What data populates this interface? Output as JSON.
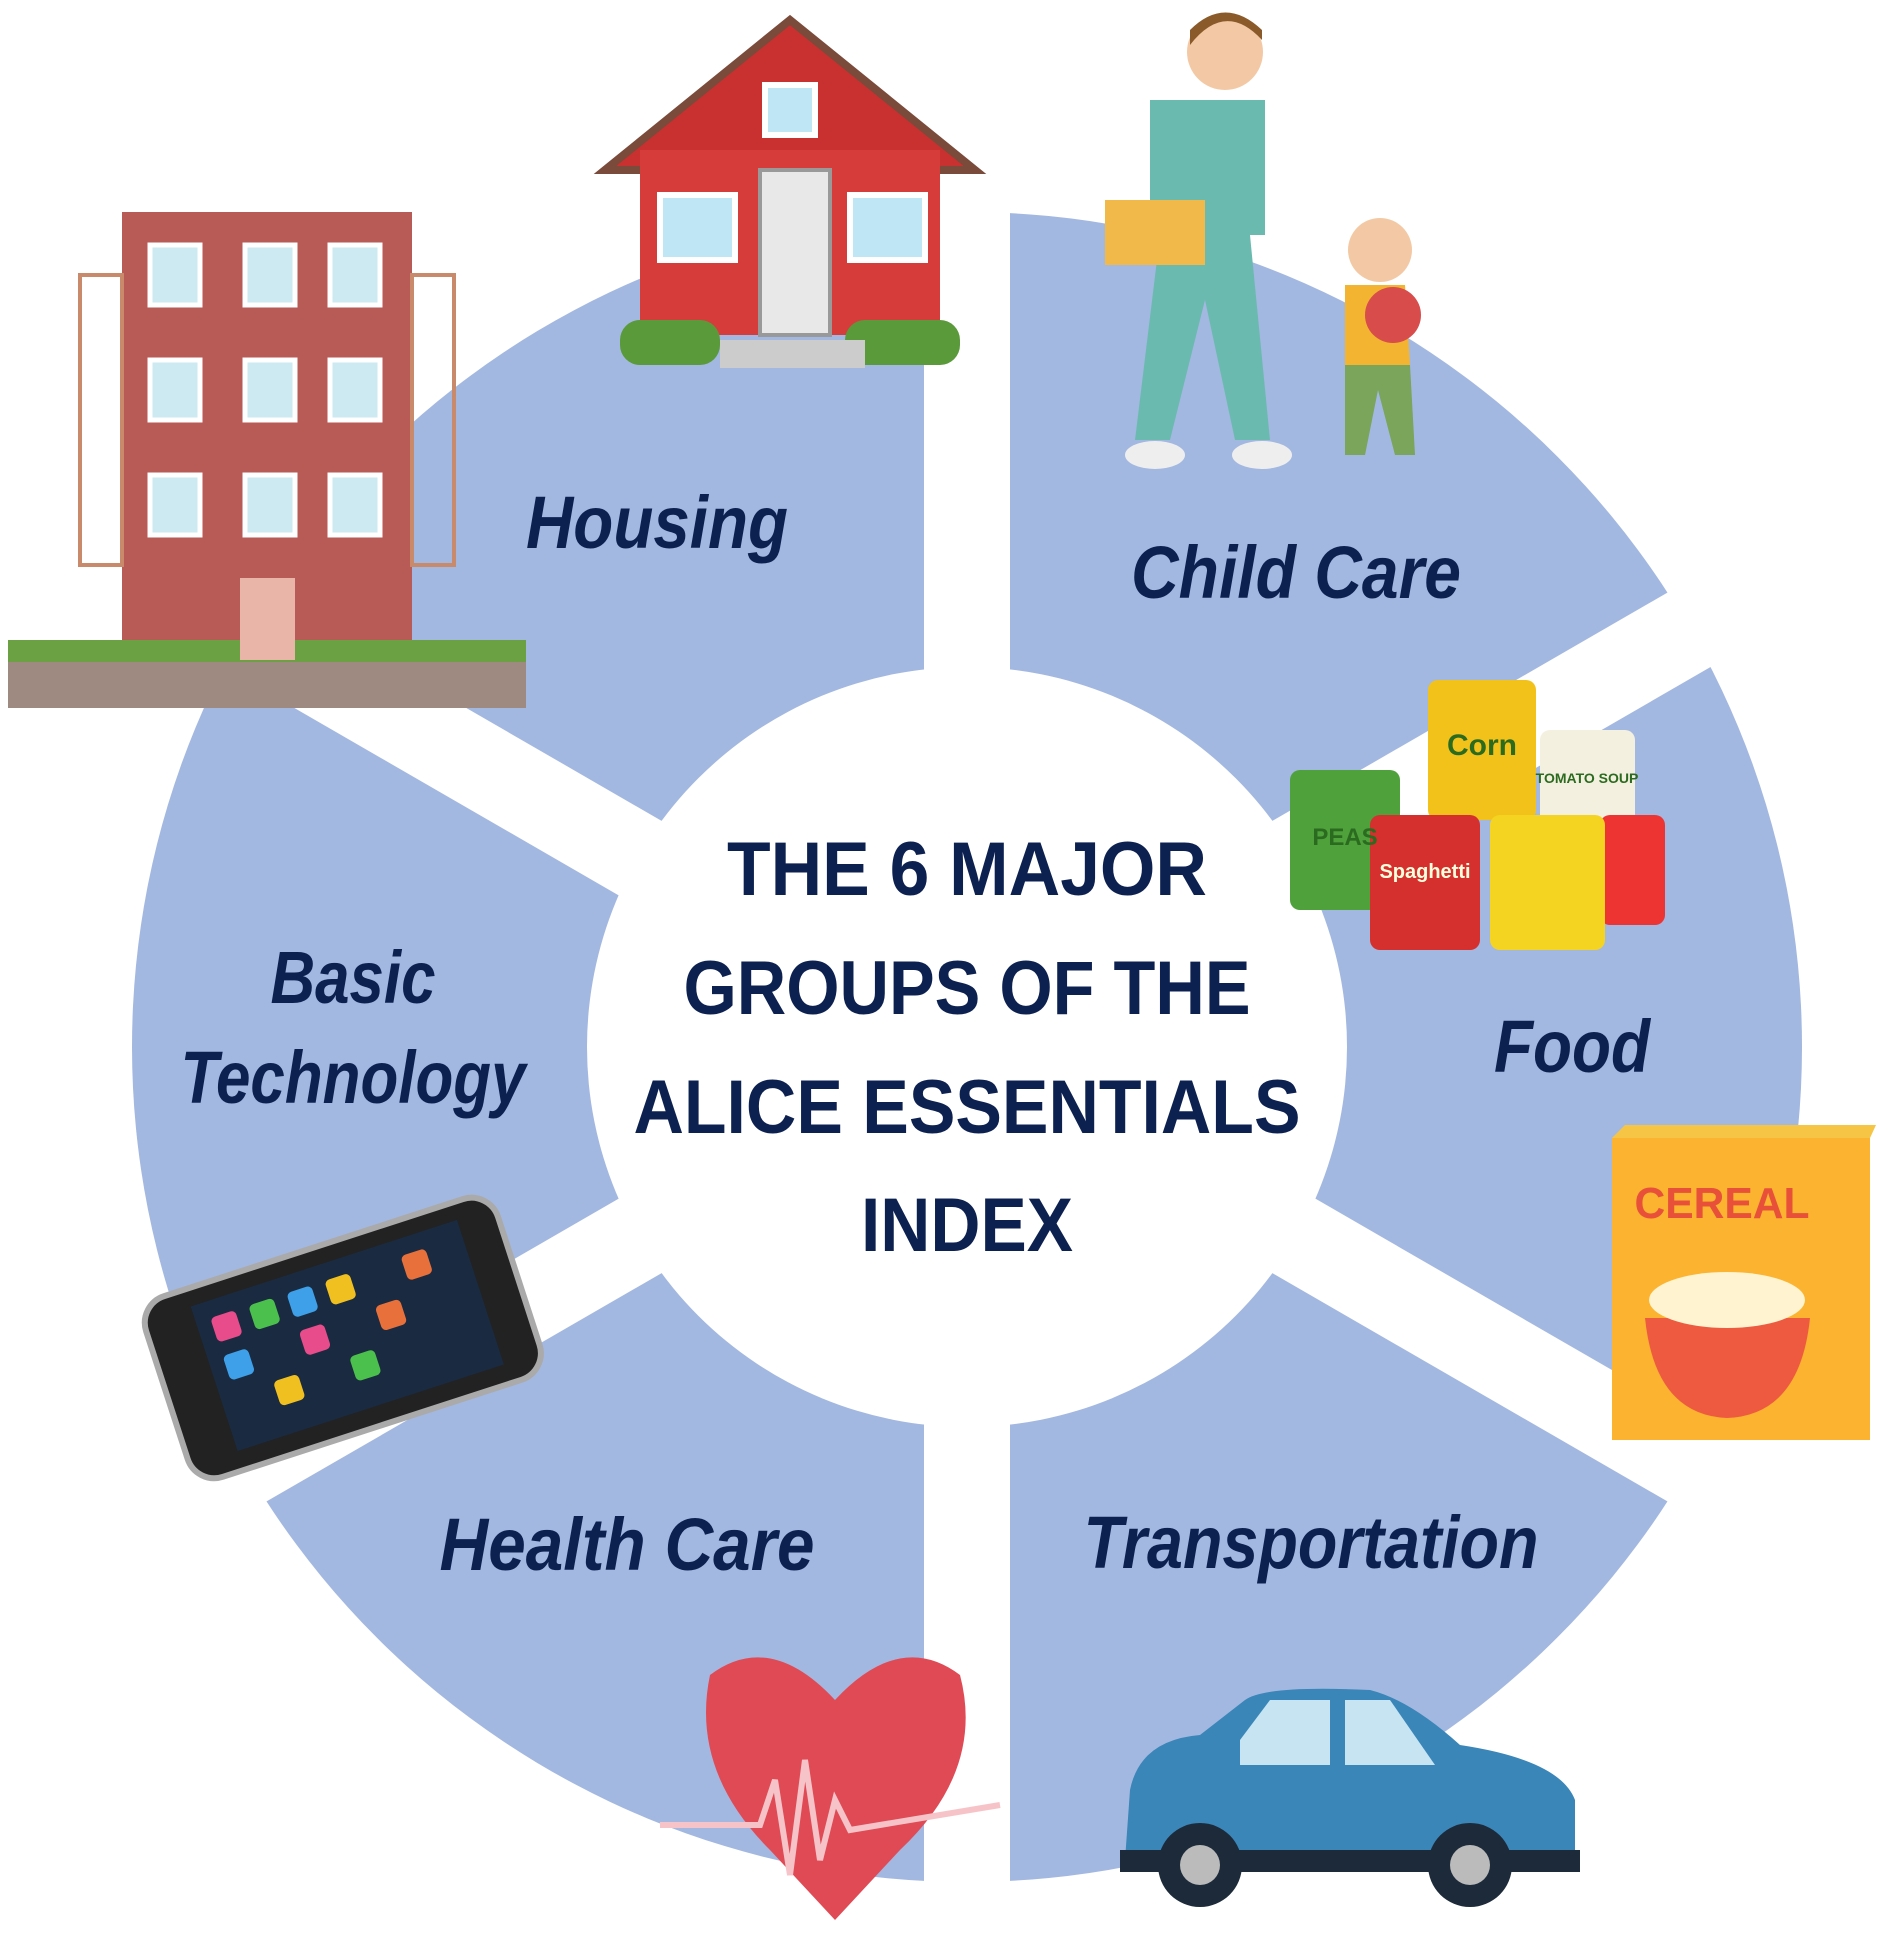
{
  "title_lines": [
    "THE 6 MAJOR",
    "GROUPS OF THE",
    "ALICE ESSENTIALS",
    "INDEX"
  ],
  "groups": [
    {
      "label": "Housing"
    },
    {
      "label": "Child Care"
    },
    {
      "label": "Food"
    },
    {
      "label": "Transportation"
    },
    {
      "label": "Health Care"
    },
    {
      "label_lines": [
        "Basic",
        "Technology"
      ]
    }
  ],
  "icon_texts": {
    "corn": "Corn",
    "peas": "PEAS",
    "tomato": "TOMATO SOUP",
    "spaghetti": "Spaghetti",
    "cereal": "CEREAL"
  }
}
